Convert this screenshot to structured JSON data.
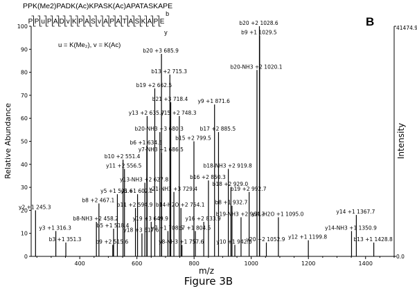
{
  "figure_caption": "Figure 3B",
  "chart_data": {
    "type": "bar",
    "panel_label": "B",
    "title": "",
    "xlabel": "m/z",
    "ylabel": "Relative Abundance",
    "right_axis_label": "Intensity",
    "right_axis_top": "41474.9",
    "right_axis_bottom": "0.0",
    "xlim": [
      230,
      1500
    ],
    "ylim": [
      0,
      100
    ],
    "x_ticks": [
      400,
      600,
      800,
      1000,
      1200,
      1400
    ],
    "y_ticks": [
      0,
      10,
      20,
      30,
      40,
      50,
      60,
      70,
      80,
      90,
      100
    ],
    "peptide": {
      "sequence_top": "PPK(Me2)PADK(Ac)KPASK(Ac)APATASKAPE",
      "residues": [
        "P",
        "P",
        "u",
        "P",
        "A",
        "D",
        "v",
        "K",
        "P",
        "A",
        "S",
        "v",
        "A",
        "P",
        "A",
        "T",
        "A",
        "S",
        "K",
        "A",
        "P",
        "E"
      ],
      "b_label": "b",
      "y_label": "y",
      "legend": "u = K(Me₂), v = K(Ac)"
    },
    "peaks": [
      {
        "mz": 1028.6,
        "intensity": 100,
        "label": "b20",
        "charge": "+2",
        "value_text": "1028.6"
      },
      {
        "mz": 1029.5,
        "intensity": 96,
        "label": "b9",
        "charge": "+1",
        "value_text": "1029.5"
      },
      {
        "mz": 1020.1,
        "intensity": 81,
        "label": "b20-NH3",
        "charge": "+2",
        "value_text": "1020.1"
      },
      {
        "mz": 685.9,
        "intensity": 88,
        "label": "b20",
        "charge": "+3",
        "value_text": "685.9"
      },
      {
        "mz": 715.3,
        "intensity": 79,
        "label": "b13",
        "charge": "+2",
        "value_text": "715.3"
      },
      {
        "mz": 662.5,
        "intensity": 73,
        "label": "b19",
        "charge": "+2",
        "value_text": "662.5"
      },
      {
        "mz": 718.4,
        "intensity": 67,
        "label": "b21",
        "charge": "+3",
        "value_text": "718.4"
      },
      {
        "mz": 871.6,
        "intensity": 66,
        "label": "y9",
        "charge": "+1",
        "value_text": "871.6"
      },
      {
        "mz": 635.7,
        "intensity": 61,
        "label": "y13",
        "charge": "+2",
        "value_text": "635.7"
      },
      {
        "mz": 748.3,
        "intensity": 61,
        "label": "y15",
        "charge": "+2",
        "value_text": "748.3"
      },
      {
        "mz": 680.3,
        "intensity": 54,
        "label": "b20-NH3",
        "charge": "+3",
        "value_text": "680.3"
      },
      {
        "mz": 885.5,
        "intensity": 54,
        "label": "b17",
        "charge": "+2",
        "value_text": "885.5"
      },
      {
        "mz": 634.5,
        "intensity": 48,
        "label": "b6",
        "charge": "+1",
        "value_text": "634.5"
      },
      {
        "mz": 799.5,
        "intensity": 50,
        "label": "b15",
        "charge": "+2",
        "value_text": "799.5"
      },
      {
        "mz": 686.5,
        "intensity": 45,
        "label": "y7-NH3",
        "charge": "+1",
        "value_text": "686.5"
      },
      {
        "mz": 551.4,
        "intensity": 42,
        "label": "b10",
        "charge": "+2",
        "value_text": "551.4"
      },
      {
        "mz": 556.5,
        "intensity": 38,
        "label": "y11",
        "charge": "+2",
        "value_text": "556.5"
      },
      {
        "mz": 919.8,
        "intensity": 38,
        "label": "b18-NH3",
        "charge": "+2",
        "value_text": "919.8"
      },
      {
        "mz": 627.8,
        "intensity": 32,
        "label": "y13-NH3",
        "charge": "+2",
        "value_text": "627.8"
      },
      {
        "mz": 850.3,
        "intensity": 33,
        "label": "b16",
        "charge": "+2",
        "value_text": "850.3"
      },
      {
        "mz": 929.0,
        "intensity": 30,
        "label": "b18",
        "charge": "+2",
        "value_text": "929.0"
      },
      {
        "mz": 531.6,
        "intensity": 27,
        "label": "y5",
        "charge": "+1",
        "value_text": "531.6"
      },
      {
        "mz": 602.2,
        "intensity": 27,
        "label": "y6",
        "charge": "+1",
        "value_text": "602.2"
      },
      {
        "mz": 729.4,
        "intensity": 28,
        "label": "y21-NH3",
        "charge": "+3",
        "value_text": "729.4"
      },
      {
        "mz": 992.7,
        "intensity": 28,
        "label": "b19",
        "charge": "+2",
        "value_text": "992.7"
      },
      {
        "mz": 467.1,
        "intensity": 23,
        "label": "b8",
        "charge": "+2",
        "value_text": "467.1"
      },
      {
        "mz": 594.9,
        "intensity": 21,
        "label": "b11",
        "charge": "+2",
        "value_text": "594.9"
      },
      {
        "mz": 754.1,
        "intensity": 21,
        "label": "b14-H2O",
        "charge": "+2",
        "value_text": "754.1"
      },
      {
        "mz": 932.7,
        "intensity": 22,
        "label": "b8",
        "charge": "+1",
        "value_text": "932.7"
      },
      {
        "mz": 245.3,
        "intensity": 20,
        "label": "y2",
        "charge": "+1",
        "value_text": "245.3"
      },
      {
        "mz": 458.2,
        "intensity": 15,
        "label": "b8-NH3",
        "charge": "+2",
        "value_text": "458.2"
      },
      {
        "mz": 518.4,
        "intensity": 12,
        "label": "b5",
        "charge": "+1",
        "value_text": "518.4"
      },
      {
        "mz": 649.9,
        "intensity": 15,
        "label": "y19",
        "charge": "+3",
        "value_text": "649.9"
      },
      {
        "mz": 617.6,
        "intensity": 10,
        "label": "y18",
        "charge": "+3",
        "value_text": "617.6"
      },
      {
        "mz": 708.5,
        "intensity": 11,
        "label": "y7",
        "charge": "+1",
        "value_text": "708.5"
      },
      {
        "mz": 804.5,
        "intensity": 11,
        "label": "b7",
        "charge": "+1",
        "value_text": "804.5"
      },
      {
        "mz": 833.9,
        "intensity": 15,
        "label": "y16",
        "charge": "+2",
        "value_text": "833.9"
      },
      {
        "mz": 964.3,
        "intensity": 17,
        "label": "b19-NH3",
        "charge": "+2",
        "value_text": "964.3"
      },
      {
        "mz": 1095.0,
        "intensity": 17,
        "label": "y11-H2O",
        "charge": "+1",
        "value_text": "1095.0"
      },
      {
        "mz": 1367.7,
        "intensity": 18,
        "label": "y14",
        "charge": "+1",
        "value_text": "1367.7"
      },
      {
        "mz": 316.3,
        "intensity": 11,
        "label": "y3",
        "charge": "+1",
        "value_text": "316.3"
      },
      {
        "mz": 351.3,
        "intensity": 6,
        "label": "b3",
        "charge": "+1",
        "value_text": "351.3"
      },
      {
        "mz": 515.6,
        "intensity": 5,
        "label": "b9",
        "charge": "+2",
        "value_text": "515.6"
      },
      {
        "mz": 757.6,
        "intensity": 5,
        "label": "y8-NH3",
        "charge": "+1",
        "value_text": "757.6"
      },
      {
        "mz": 942.6,
        "intensity": 5,
        "label": "y10",
        "charge": "+1",
        "value_text": "942.6"
      },
      {
        "mz": 1052.9,
        "intensity": 6,
        "label": "y20",
        "charge": "+2",
        "value_text": "1052.9"
      },
      {
        "mz": 1199.8,
        "intensity": 7,
        "label": "y12",
        "charge": "+1",
        "value_text": "1199.8"
      },
      {
        "mz": 1350.9,
        "intensity": 11,
        "label": "y14-NH3",
        "charge": "+1",
        "value_text": "1350.9"
      },
      {
        "mz": 1428.8,
        "intensity": 6,
        "label": "b13",
        "charge": "+1",
        "value_text": "1428.8"
      }
    ]
  }
}
